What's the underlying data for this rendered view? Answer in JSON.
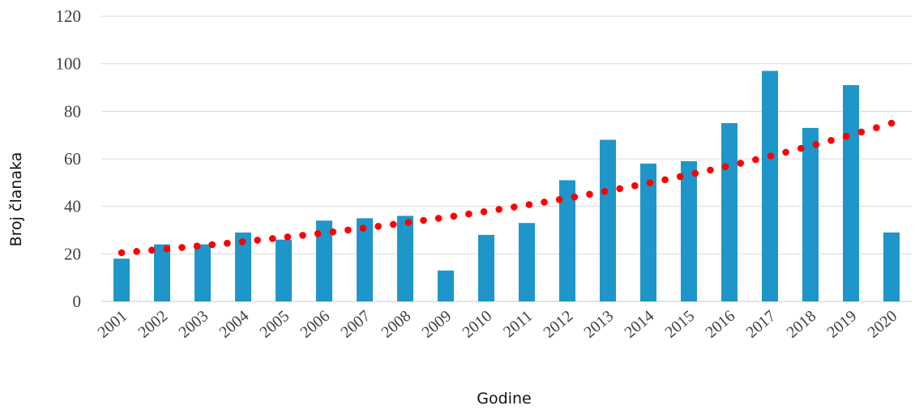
{
  "chart_data": {
    "type": "bar",
    "title": "",
    "xlabel": "Godine",
    "ylabel": "Broj članaka",
    "ylim": [
      0,
      120
    ],
    "yticks": [
      0,
      20,
      40,
      60,
      80,
      100,
      120
    ],
    "grid": true,
    "categories": [
      "2001",
      "2002",
      "2003",
      "2004",
      "2005",
      "2006",
      "2007",
      "2008",
      "2009",
      "2010",
      "2011",
      "2012",
      "2013",
      "2014",
      "2015",
      "2016",
      "2017",
      "2018",
      "2019",
      "2020"
    ],
    "values": [
      18,
      24,
      24,
      29,
      26,
      34,
      35,
      36,
      13,
      28,
      33,
      51,
      68,
      58,
      59,
      75,
      97,
      73,
      91,
      29
    ],
    "trendline": {
      "style": "dotted",
      "kind": "exponential",
      "start": 20.5,
      "end": 75
    },
    "colors": {
      "bar": "#1f96c9",
      "trend": "#ff0000"
    }
  }
}
